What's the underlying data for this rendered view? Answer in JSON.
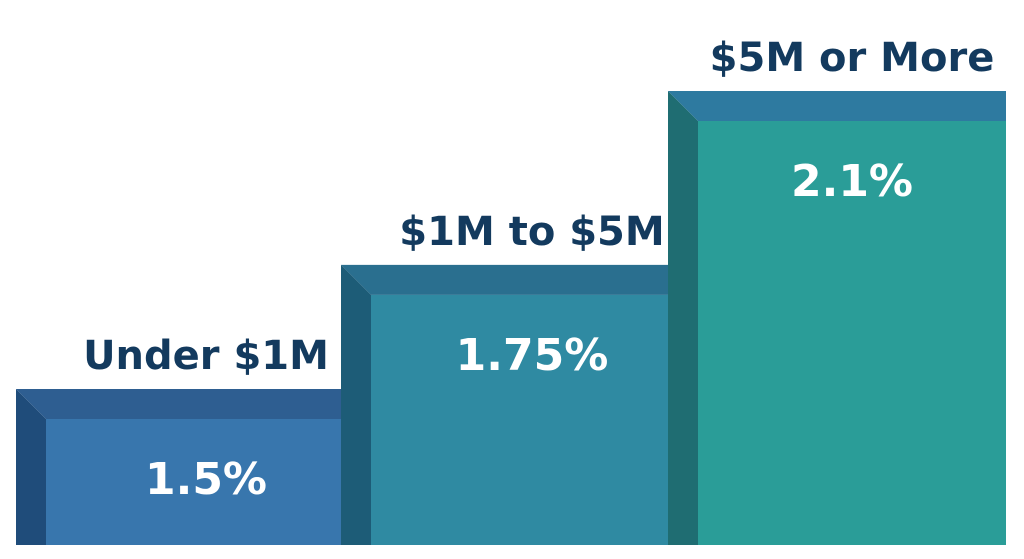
{
  "chart_data": {
    "type": "bar",
    "categories": [
      "Under $1M",
      "$1M to $5M",
      "$5M or More"
    ],
    "values": [
      1.5,
      1.75,
      2.1
    ],
    "value_labels": [
      "1.5%",
      "1.75%",
      "2.1%"
    ],
    "unit": "%",
    "title": "",
    "xlabel": "",
    "ylabel": "",
    "grid": false,
    "legend": "none"
  },
  "colors": {
    "tier_1_face": "#3876ad",
    "tier_1_top": "#2e5e91",
    "tier_1_side": "#1f4c7a",
    "tier_2_face": "#2f8aa2",
    "tier_2_top": "#2a6f8f",
    "tier_2_side": "#1d5c77",
    "tier_3_face": "#2a9d98",
    "tier_3_top": "#2e7aa0",
    "tier_3_side": "#1f6d72",
    "label_text": "#133a5e",
    "value_text": "#ffffff"
  }
}
